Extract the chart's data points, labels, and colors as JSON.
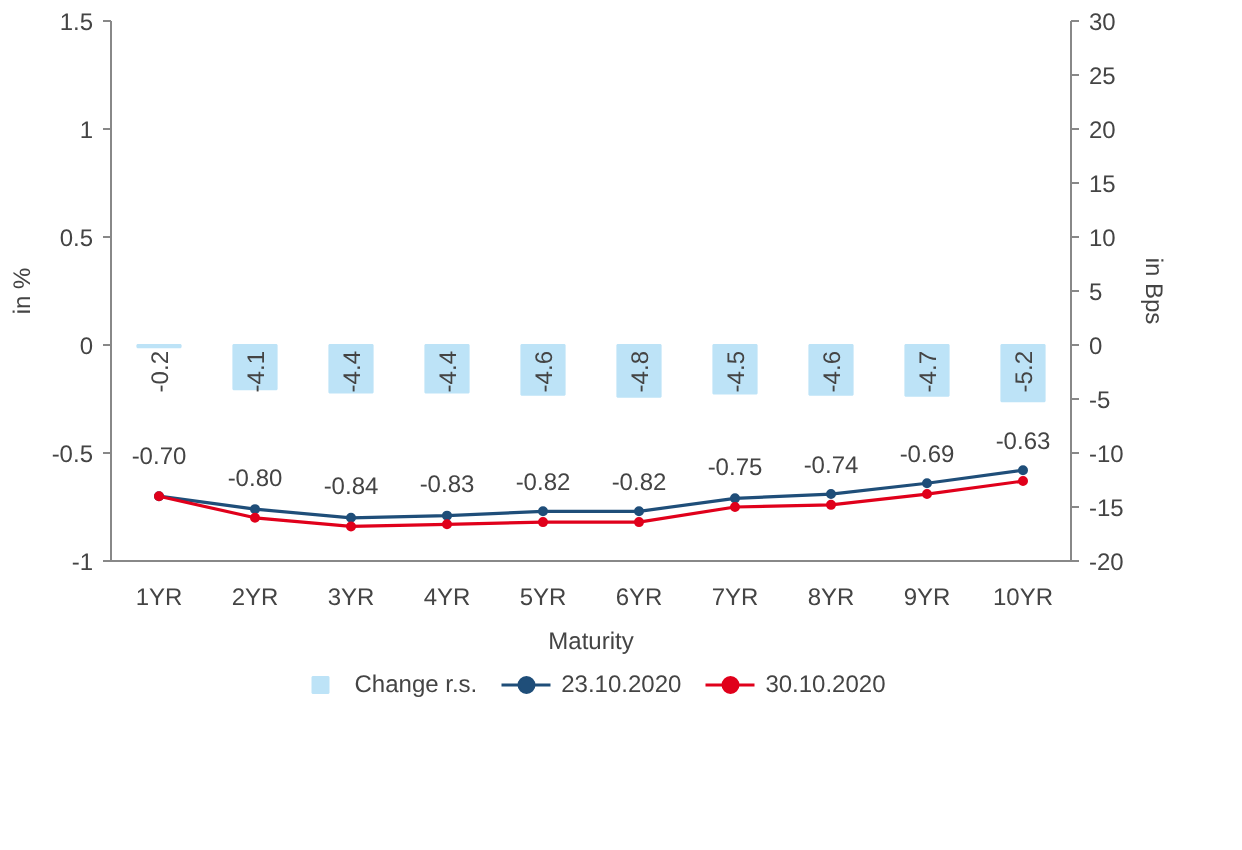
{
  "chart_data": {
    "type": "line",
    "xlabel": "Maturity",
    "ylabel": "in %",
    "y2label": "in Bps",
    "categories": [
      "1YR",
      "2YR",
      "3YR",
      "4YR",
      "5YR",
      "6YR",
      "7YR",
      "8YR",
      "9YR",
      "10YR"
    ],
    "series": [
      {
        "name": "Change r.s.",
        "type": "bar",
        "axis": "y2",
        "color": "#bde3f7",
        "values": [
          -0.2,
          -4.1,
          -4.4,
          -4.4,
          -4.6,
          -4.8,
          -4.5,
          -4.6,
          -4.7,
          -5.2
        ],
        "value_labels": [
          "-0.2",
          "-4.1",
          "-4.4",
          "-4.4",
          "-4.6",
          "-4.8",
          "-4.5",
          "-4.6",
          "-4.7",
          "-5.2"
        ]
      },
      {
        "name": "23.10.2020",
        "color": "#1f4e79",
        "values": [
          -0.7,
          -0.76,
          -0.8,
          -0.79,
          -0.77,
          -0.77,
          -0.71,
          -0.69,
          -0.64,
          -0.58
        ]
      },
      {
        "name": "30.10.2020",
        "color": "#e0001b",
        "values": [
          -0.7,
          -0.8,
          -0.84,
          -0.83,
          -0.82,
          -0.82,
          -0.75,
          -0.74,
          -0.69,
          -0.63
        ],
        "value_labels": [
          "-0.70",
          "-0.80",
          "-0.84",
          "-0.83",
          "-0.82",
          "-0.82",
          "-0.75",
          "-0.74",
          "-0.69",
          "-0.63"
        ]
      }
    ],
    "ylim": [
      -1,
      1.5
    ],
    "yticks": [
      -1,
      -0.5,
      0,
      0.5,
      1,
      1.5
    ],
    "y2lim": [
      -20,
      30
    ],
    "y2ticks": [
      -20,
      -15,
      -10,
      -5,
      0,
      5,
      10,
      15,
      20,
      25,
      30
    ],
    "grid": false,
    "legend": "bottom",
    "marker": "circle",
    "line_style": "solid"
  }
}
